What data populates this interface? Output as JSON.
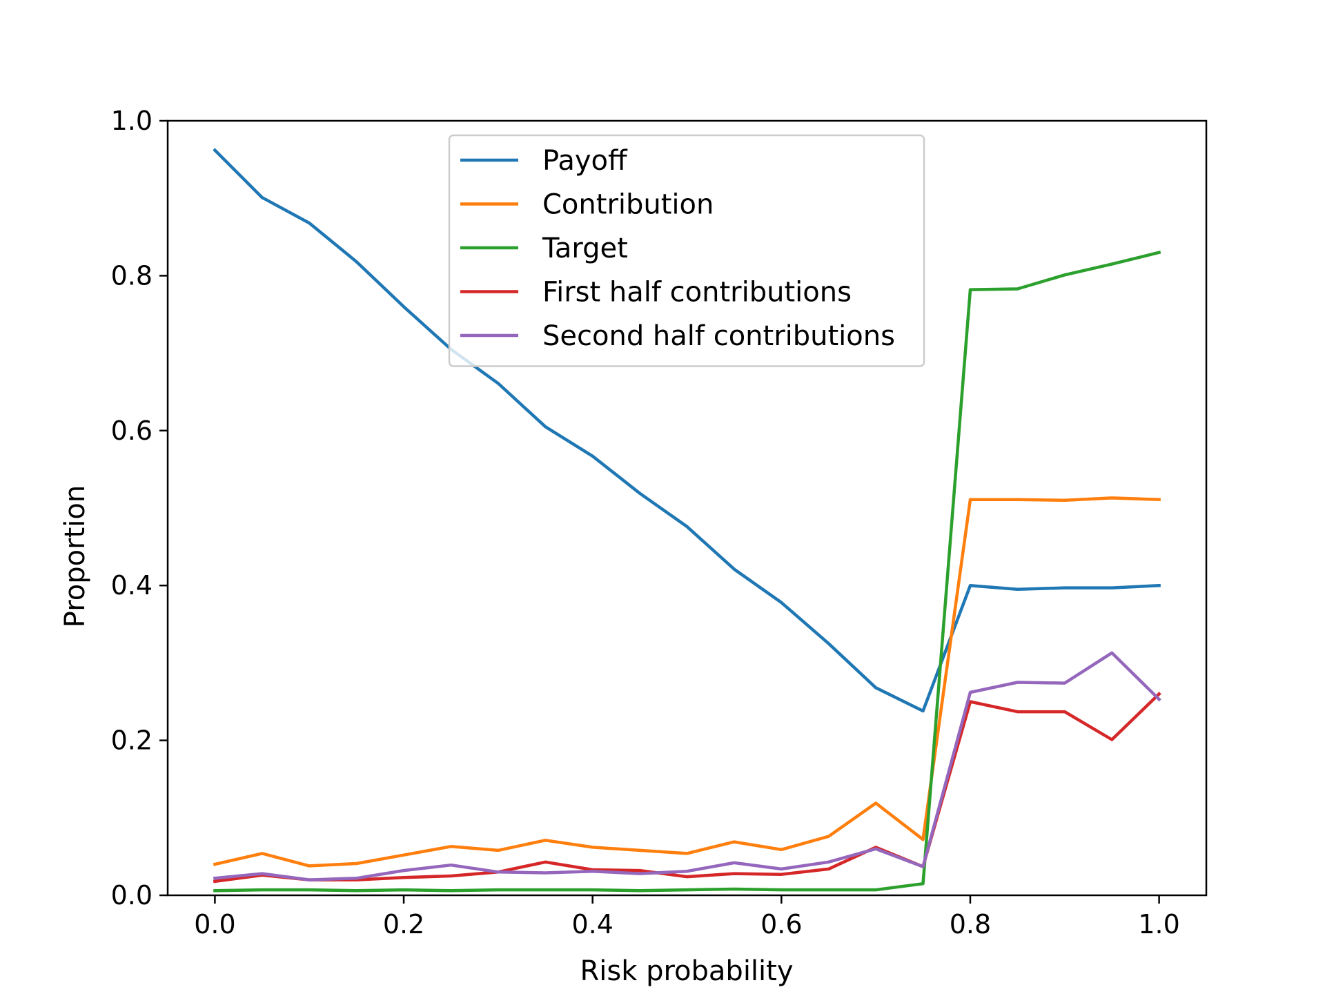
{
  "chart_data": {
    "type": "line",
    "title": "",
    "xlabel": "Risk probability",
    "ylabel": "Proportion",
    "xlim": [
      -0.05,
      1.05
    ],
    "ylim": [
      0.0,
      1.0
    ],
    "xticks": [
      "0.0",
      "0.2",
      "0.4",
      "0.6",
      "0.8",
      "1.0"
    ],
    "yticks": [
      "0.0",
      "0.2",
      "0.4",
      "0.6",
      "0.8",
      "1.0"
    ],
    "grid": false,
    "legend_position": "upper center",
    "x": [
      0.0,
      0.05,
      0.1,
      0.15,
      0.2,
      0.25,
      0.3,
      0.35,
      0.4,
      0.45,
      0.5,
      0.55,
      0.6,
      0.65,
      0.7,
      0.75,
      0.8,
      0.85,
      0.9,
      0.95,
      1.0
    ],
    "series": [
      {
        "name": "Payoff",
        "color": "#1f77b4",
        "values": [
          0.962,
          0.901,
          0.868,
          0.818,
          0.76,
          0.705,
          0.661,
          0.605,
          0.567,
          0.519,
          0.476,
          0.421,
          0.378,
          0.325,
          0.268,
          0.238,
          0.4,
          0.395,
          0.397,
          0.397,
          0.4
        ]
      },
      {
        "name": "Contribution",
        "color": "#ff7f0e",
        "values": [
          0.04,
          0.054,
          0.038,
          0.041,
          0.052,
          0.063,
          0.058,
          0.071,
          0.062,
          0.058,
          0.054,
          0.069,
          0.059,
          0.076,
          0.119,
          0.072,
          0.511,
          0.511,
          0.51,
          0.513,
          0.511
        ]
      },
      {
        "name": "Target",
        "color": "#2ca02c",
        "values": [
          0.006,
          0.007,
          0.007,
          0.006,
          0.007,
          0.006,
          0.007,
          0.007,
          0.007,
          0.006,
          0.007,
          0.008,
          0.007,
          0.007,
          0.007,
          0.015,
          0.782,
          0.783,
          0.801,
          0.815,
          0.83
        ]
      },
      {
        "name": "First half contributions",
        "color": "#d62728",
        "values": [
          0.018,
          0.026,
          0.02,
          0.02,
          0.023,
          0.025,
          0.03,
          0.043,
          0.033,
          0.032,
          0.024,
          0.028,
          0.027,
          0.034,
          0.062,
          0.037,
          0.25,
          0.237,
          0.237,
          0.201,
          0.26
        ]
      },
      {
        "name": "Second half contributions",
        "color": "#9467bd",
        "values": [
          0.022,
          0.028,
          0.02,
          0.022,
          0.032,
          0.039,
          0.03,
          0.029,
          0.031,
          0.028,
          0.031,
          0.042,
          0.034,
          0.043,
          0.06,
          0.037,
          0.262,
          0.275,
          0.274,
          0.313,
          0.253
        ]
      }
    ]
  }
}
